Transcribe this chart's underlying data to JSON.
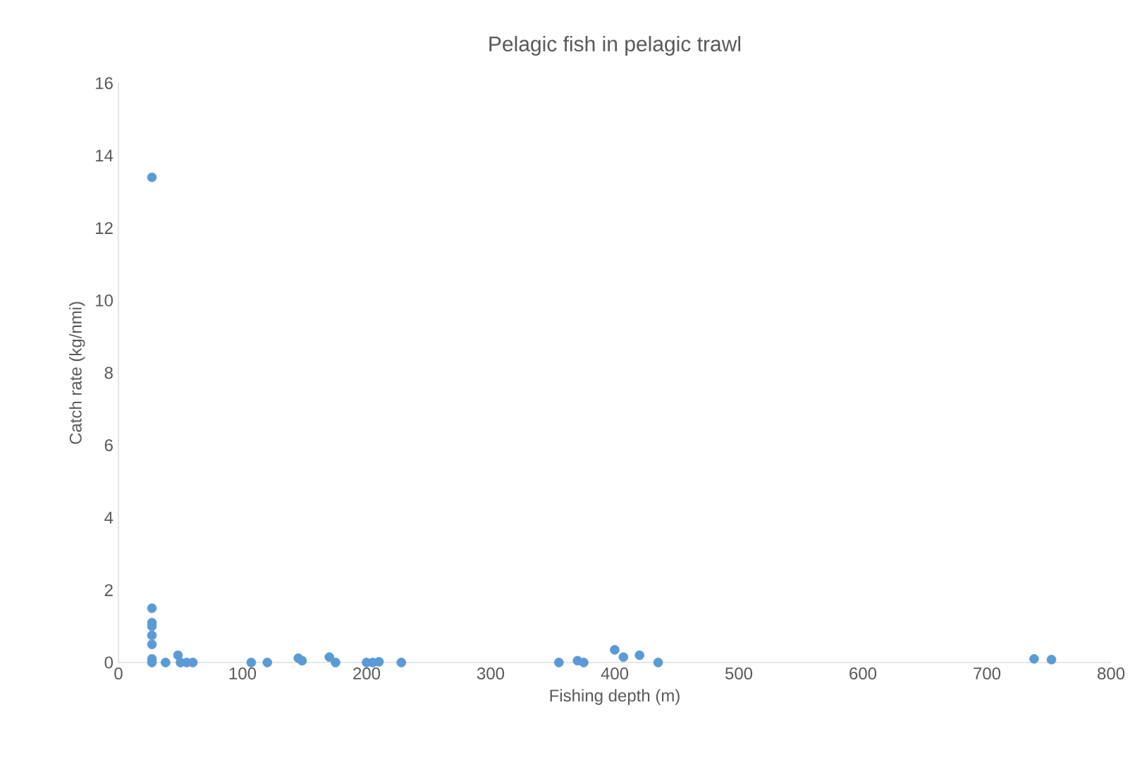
{
  "chart_data": {
    "type": "scatter",
    "title": "Pelagic fish in pelagic trawl",
    "xlabel": "Fishing depth (m)",
    "ylabel": "Catch rate (kg/nmi)",
    "x": [
      27,
      27,
      27,
      27,
      27,
      27,
      27,
      27,
      38,
      48,
      50,
      55,
      60,
      107,
      120,
      145,
      148,
      170,
      175,
      200,
      205,
      210,
      228,
      355,
      370,
      375,
      400,
      407,
      420,
      435,
      738,
      752
    ],
    "values": [
      13.4,
      1.5,
      1.1,
      1.0,
      0.75,
      0.5,
      0.1,
      0,
      0,
      0.2,
      0,
      0,
      0,
      0,
      0,
      0.12,
      0.05,
      0.15,
      0,
      0,
      0,
      0.02,
      0,
      0,
      0.05,
      0,
      0.35,
      0.15,
      0.2,
      0,
      0.1,
      0.08
    ],
    "color": "#5b9bd5",
    "marker": "circle",
    "grid": false,
    "xlim": [
      0,
      800
    ],
    "xticks": [
      0,
      100,
      200,
      300,
      400,
      500,
      600,
      700,
      800
    ],
    "ylim": [
      0,
      16
    ],
    "yticks": [
      0,
      2,
      4,
      6,
      8,
      10,
      12,
      14,
      16
    ]
  }
}
